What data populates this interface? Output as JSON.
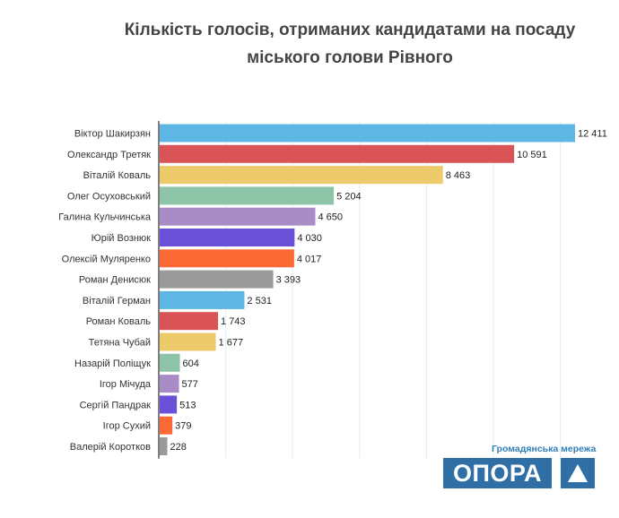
{
  "chart_data": {
    "type": "bar",
    "orientation": "horizontal",
    "title_line1": "Кількість голосів, отриманих кандидатами на посаду",
    "title_line2": "міського голови Рівного",
    "xlabel": "",
    "ylabel": "",
    "xlim": [
      0,
      12500
    ],
    "grid": true,
    "categories": [
      "Віктор Шакирзян",
      "Олександр Третяк",
      "Віталій Коваль",
      "Олег Осуховський",
      "Галина Кульчинська",
      "Юрій Вознюк",
      "Олексій Муляренко",
      "Роман Денисюк",
      "Віталій Герман",
      "Роман Коваль",
      "Тетяна Чубай",
      "Назарій Поліщук",
      "Ігор Мічуда",
      "Сергій Пандрак",
      "Ігор Сухий",
      "Валерій Коротков"
    ],
    "values": [
      12411,
      10591,
      8463,
      5204,
      4650,
      4030,
      4017,
      3393,
      2531,
      1743,
      1677,
      604,
      577,
      513,
      379,
      228
    ],
    "value_labels": [
      "12 411",
      "10 591",
      "8 463",
      "5 204",
      "4 650",
      "4 030",
      "4 017",
      "3 393",
      "2 531",
      "1 743",
      "1 677",
      "604",
      "577",
      "513",
      "379",
      "228"
    ],
    "colors": [
      "#5db6e4",
      "#d95357",
      "#eecb6a",
      "#8dc4a7",
      "#a98cc6",
      "#6a50d6",
      "#fb6a35",
      "#9a9a9a",
      "#5db6e4",
      "#d95357",
      "#eecb6a",
      "#8dc4a7",
      "#a98cc6",
      "#6a50d6",
      "#fb6a35",
      "#9a9a9a"
    ]
  },
  "logo": {
    "subtitle": "Громадянська мережа",
    "name": "ОПОРА"
  }
}
